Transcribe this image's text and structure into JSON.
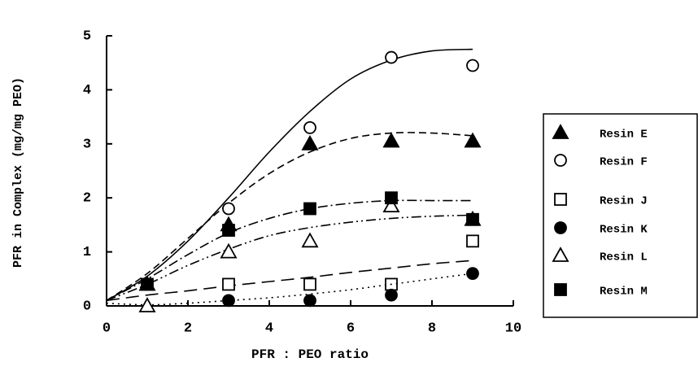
{
  "chart_data": {
    "type": "scatter",
    "x_label": "PFR : PEO ratio",
    "y_label": "PFR in Complex (mg/mg PEO)",
    "xlim": [
      0,
      10
    ],
    "xticks": [
      0,
      2,
      4,
      6,
      8,
      10
    ],
    "ylim": [
      0,
      5
    ],
    "yticks": [
      0,
      1,
      2,
      3,
      4,
      5
    ],
    "fit_x": [
      0,
      1,
      2,
      3,
      4,
      5,
      6,
      7,
      8,
      9
    ],
    "series": [
      {
        "name": "Resin E",
        "color": "#000000",
        "marker": "triangle",
        "filled": true,
        "dash": "9,5",
        "x": [
          1,
          3,
          5,
          7,
          9
        ],
        "values": [
          0.4,
          1.5,
          3.0,
          3.05,
          3.05
        ],
        "fit": [
          0.1,
          0.6,
          1.25,
          1.9,
          2.45,
          2.85,
          3.1,
          3.2,
          3.2,
          3.15
        ]
      },
      {
        "name": "Resin F",
        "color": "#000000",
        "marker": "circle",
        "filled": false,
        "dash": "none",
        "x": [
          3,
          5,
          7,
          9
        ],
        "values": [
          1.8,
          3.3,
          4.6,
          4.45
        ],
        "fit": [
          0.1,
          0.55,
          1.2,
          2.0,
          2.85,
          3.6,
          4.2,
          4.55,
          4.72,
          4.75
        ]
      },
      {
        "name": "Resin J",
        "color": "#000000",
        "marker": "square",
        "filled": false,
        "dash": "16,8",
        "x": [
          3,
          5,
          7,
          9
        ],
        "values": [
          0.4,
          0.4,
          0.4,
          1.2
        ],
        "fit": [
          0.1,
          0.2,
          0.28,
          0.37,
          0.45,
          0.53,
          0.62,
          0.7,
          0.78,
          0.84
        ]
      },
      {
        "name": "Resin K",
        "color": "#000000",
        "marker": "circle",
        "filled": true,
        "dash": "2,5",
        "x": [
          3,
          5,
          7,
          9
        ],
        "values": [
          0.1,
          0.1,
          0.2,
          0.6
        ],
        "fit": [
          0.05,
          0.02,
          0.05,
          0.1,
          0.15,
          0.22,
          0.3,
          0.4,
          0.5,
          0.6
        ]
      },
      {
        "name": "Resin L",
        "color": "#000000",
        "marker": "triangle",
        "filled": false,
        "dash": "12,4,2,4,2,4",
        "x": [
          1,
          3,
          5,
          7,
          9
        ],
        "values": [
          0.0,
          1.0,
          1.2,
          1.85,
          1.6
        ],
        "fit": [
          0.1,
          0.4,
          0.75,
          1.05,
          1.3,
          1.45,
          1.55,
          1.62,
          1.66,
          1.68
        ]
      },
      {
        "name": "Resin M",
        "color": "#000000",
        "marker": "square",
        "filled": true,
        "dash": "12,4,2,4",
        "x": [
          1,
          3,
          5,
          7,
          9
        ],
        "values": [
          0.4,
          1.4,
          1.8,
          2.0,
          1.6
        ],
        "fit": [
          0.1,
          0.5,
          0.95,
          1.35,
          1.62,
          1.8,
          1.9,
          1.95,
          1.95,
          1.95
        ]
      }
    ]
  }
}
